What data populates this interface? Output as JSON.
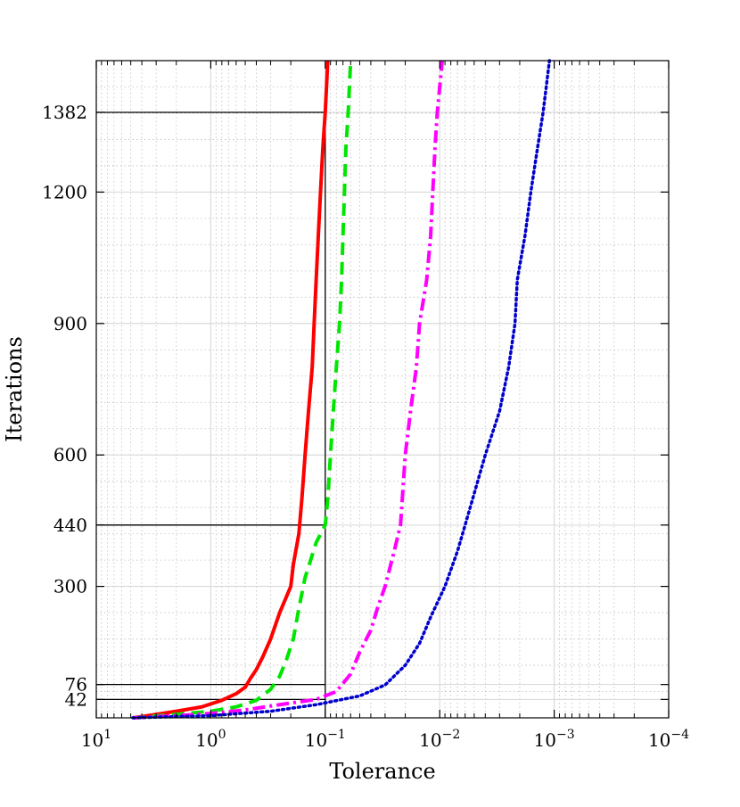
{
  "chart_data": {
    "type": "line",
    "xlabel": "Tolerance",
    "ylabel": "Iterations",
    "xscale": "log",
    "xreversed": true,
    "xlim": [
      10,
      0.0001
    ],
    "ylim": [
      0,
      1500
    ],
    "grid": true,
    "minor_grid": true,
    "legend": "none",
    "x_ticks": [
      {
        "value": 10,
        "base": "10",
        "exp": "1"
      },
      {
        "value": 1,
        "base": "10",
        "exp": "0"
      },
      {
        "value": 0.1,
        "base": "10",
        "exp": "−1"
      },
      {
        "value": 0.01,
        "base": "10",
        "exp": "−2"
      },
      {
        "value": 0.001,
        "base": "10",
        "exp": "−3"
      },
      {
        "value": 0.0001,
        "base": "10",
        "exp": "−4"
      }
    ],
    "y_ticks": [
      {
        "value": 42,
        "label": "42"
      },
      {
        "value": 76,
        "label": "76"
      },
      {
        "value": 300,
        "label": "300"
      },
      {
        "value": 440,
        "label": "440"
      },
      {
        "value": 600,
        "label": "600"
      },
      {
        "value": 900,
        "label": "900"
      },
      {
        "value": 1200,
        "label": "1200"
      },
      {
        "value": 1382,
        "label": "1382"
      }
    ],
    "reference_lines": [
      {
        "tolerance": 0.1,
        "iterations": 42
      },
      {
        "tolerance": 0.1,
        "iterations": 76
      },
      {
        "tolerance": 0.1,
        "iterations": 440
      },
      {
        "tolerance": 0.1,
        "iterations": 1382
      }
    ],
    "reference_vertical": {
      "tolerance": 0.1,
      "from": 0,
      "to": 1382
    },
    "series": [
      {
        "color": "#ff0000",
        "style": "solid",
        "points": [
          [
            4.8,
            0
          ],
          [
            3.5,
            5
          ],
          [
            2,
            15
          ],
          [
            1.2,
            25
          ],
          [
            0.8,
            40
          ],
          [
            0.6,
            55
          ],
          [
            0.5,
            70
          ],
          [
            0.45,
            90
          ],
          [
            0.4,
            110
          ],
          [
            0.35,
            140
          ],
          [
            0.3,
            180
          ],
          [
            0.25,
            240
          ],
          [
            0.2,
            300
          ],
          [
            0.19,
            350
          ],
          [
            0.17,
            420
          ],
          [
            0.16,
            500
          ],
          [
            0.15,
            600
          ],
          [
            0.14,
            700
          ],
          [
            0.13,
            800
          ],
          [
            0.125,
            900
          ],
          [
            0.12,
            1000
          ],
          [
            0.115,
            1100
          ],
          [
            0.11,
            1200
          ],
          [
            0.105,
            1300
          ],
          [
            0.1,
            1382
          ],
          [
            0.095,
            1500
          ]
        ]
      },
      {
        "color": "#00e600",
        "style": "dashed",
        "points": [
          [
            4.8,
            0
          ],
          [
            2,
            8
          ],
          [
            1,
            15
          ],
          [
            0.6,
            25
          ],
          [
            0.4,
            40
          ],
          [
            0.3,
            65
          ],
          [
            0.25,
            95
          ],
          [
            0.22,
            130
          ],
          [
            0.19,
            180
          ],
          [
            0.17,
            250
          ],
          [
            0.15,
            320
          ],
          [
            0.12,
            400
          ],
          [
            0.1,
            440
          ],
          [
            0.095,
            500
          ],
          [
            0.09,
            600
          ],
          [
            0.085,
            700
          ],
          [
            0.08,
            800
          ],
          [
            0.075,
            900
          ],
          [
            0.072,
            1000
          ],
          [
            0.07,
            1100
          ],
          [
            0.068,
            1200
          ],
          [
            0.066,
            1300
          ],
          [
            0.063,
            1382
          ],
          [
            0.06,
            1500
          ]
        ]
      },
      {
        "color": "#ff00ff",
        "style": "dashdot",
        "points": [
          [
            4.8,
            0
          ],
          [
            2,
            5
          ],
          [
            1,
            10
          ],
          [
            0.5,
            18
          ],
          [
            0.25,
            30
          ],
          [
            0.12,
            42
          ],
          [
            0.08,
            60
          ],
          [
            0.06,
            100
          ],
          [
            0.05,
            150
          ],
          [
            0.04,
            200
          ],
          [
            0.035,
            250
          ],
          [
            0.03,
            300
          ],
          [
            0.025,
            380
          ],
          [
            0.022,
            440
          ],
          [
            0.02,
            600
          ],
          [
            0.018,
            700
          ],
          [
            0.016,
            800
          ],
          [
            0.015,
            900
          ],
          [
            0.013,
            1000
          ],
          [
            0.012,
            1100
          ],
          [
            0.0115,
            1200
          ],
          [
            0.011,
            1300
          ],
          [
            0.0105,
            1382
          ],
          [
            0.0095,
            1500
          ]
        ]
      },
      {
        "color": "#0000cc",
        "style": "dotted",
        "points": [
          [
            4.8,
            0
          ],
          [
            1,
            5
          ],
          [
            0.3,
            15
          ],
          [
            0.12,
            30
          ],
          [
            0.05,
            50
          ],
          [
            0.03,
            75
          ],
          [
            0.02,
            120
          ],
          [
            0.015,
            170
          ],
          [
            0.012,
            230
          ],
          [
            0.009,
            300
          ],
          [
            0.007,
            380
          ],
          [
            0.006,
            440
          ],
          [
            0.004,
            600
          ],
          [
            0.003,
            700
          ],
          [
            0.0025,
            800
          ],
          [
            0.0022,
            900
          ],
          [
            0.0021,
            1000
          ],
          [
            0.0018,
            1100
          ],
          [
            0.0016,
            1200
          ],
          [
            0.0014,
            1300
          ],
          [
            0.00125,
            1382
          ],
          [
            0.0011,
            1500
          ]
        ]
      }
    ]
  }
}
